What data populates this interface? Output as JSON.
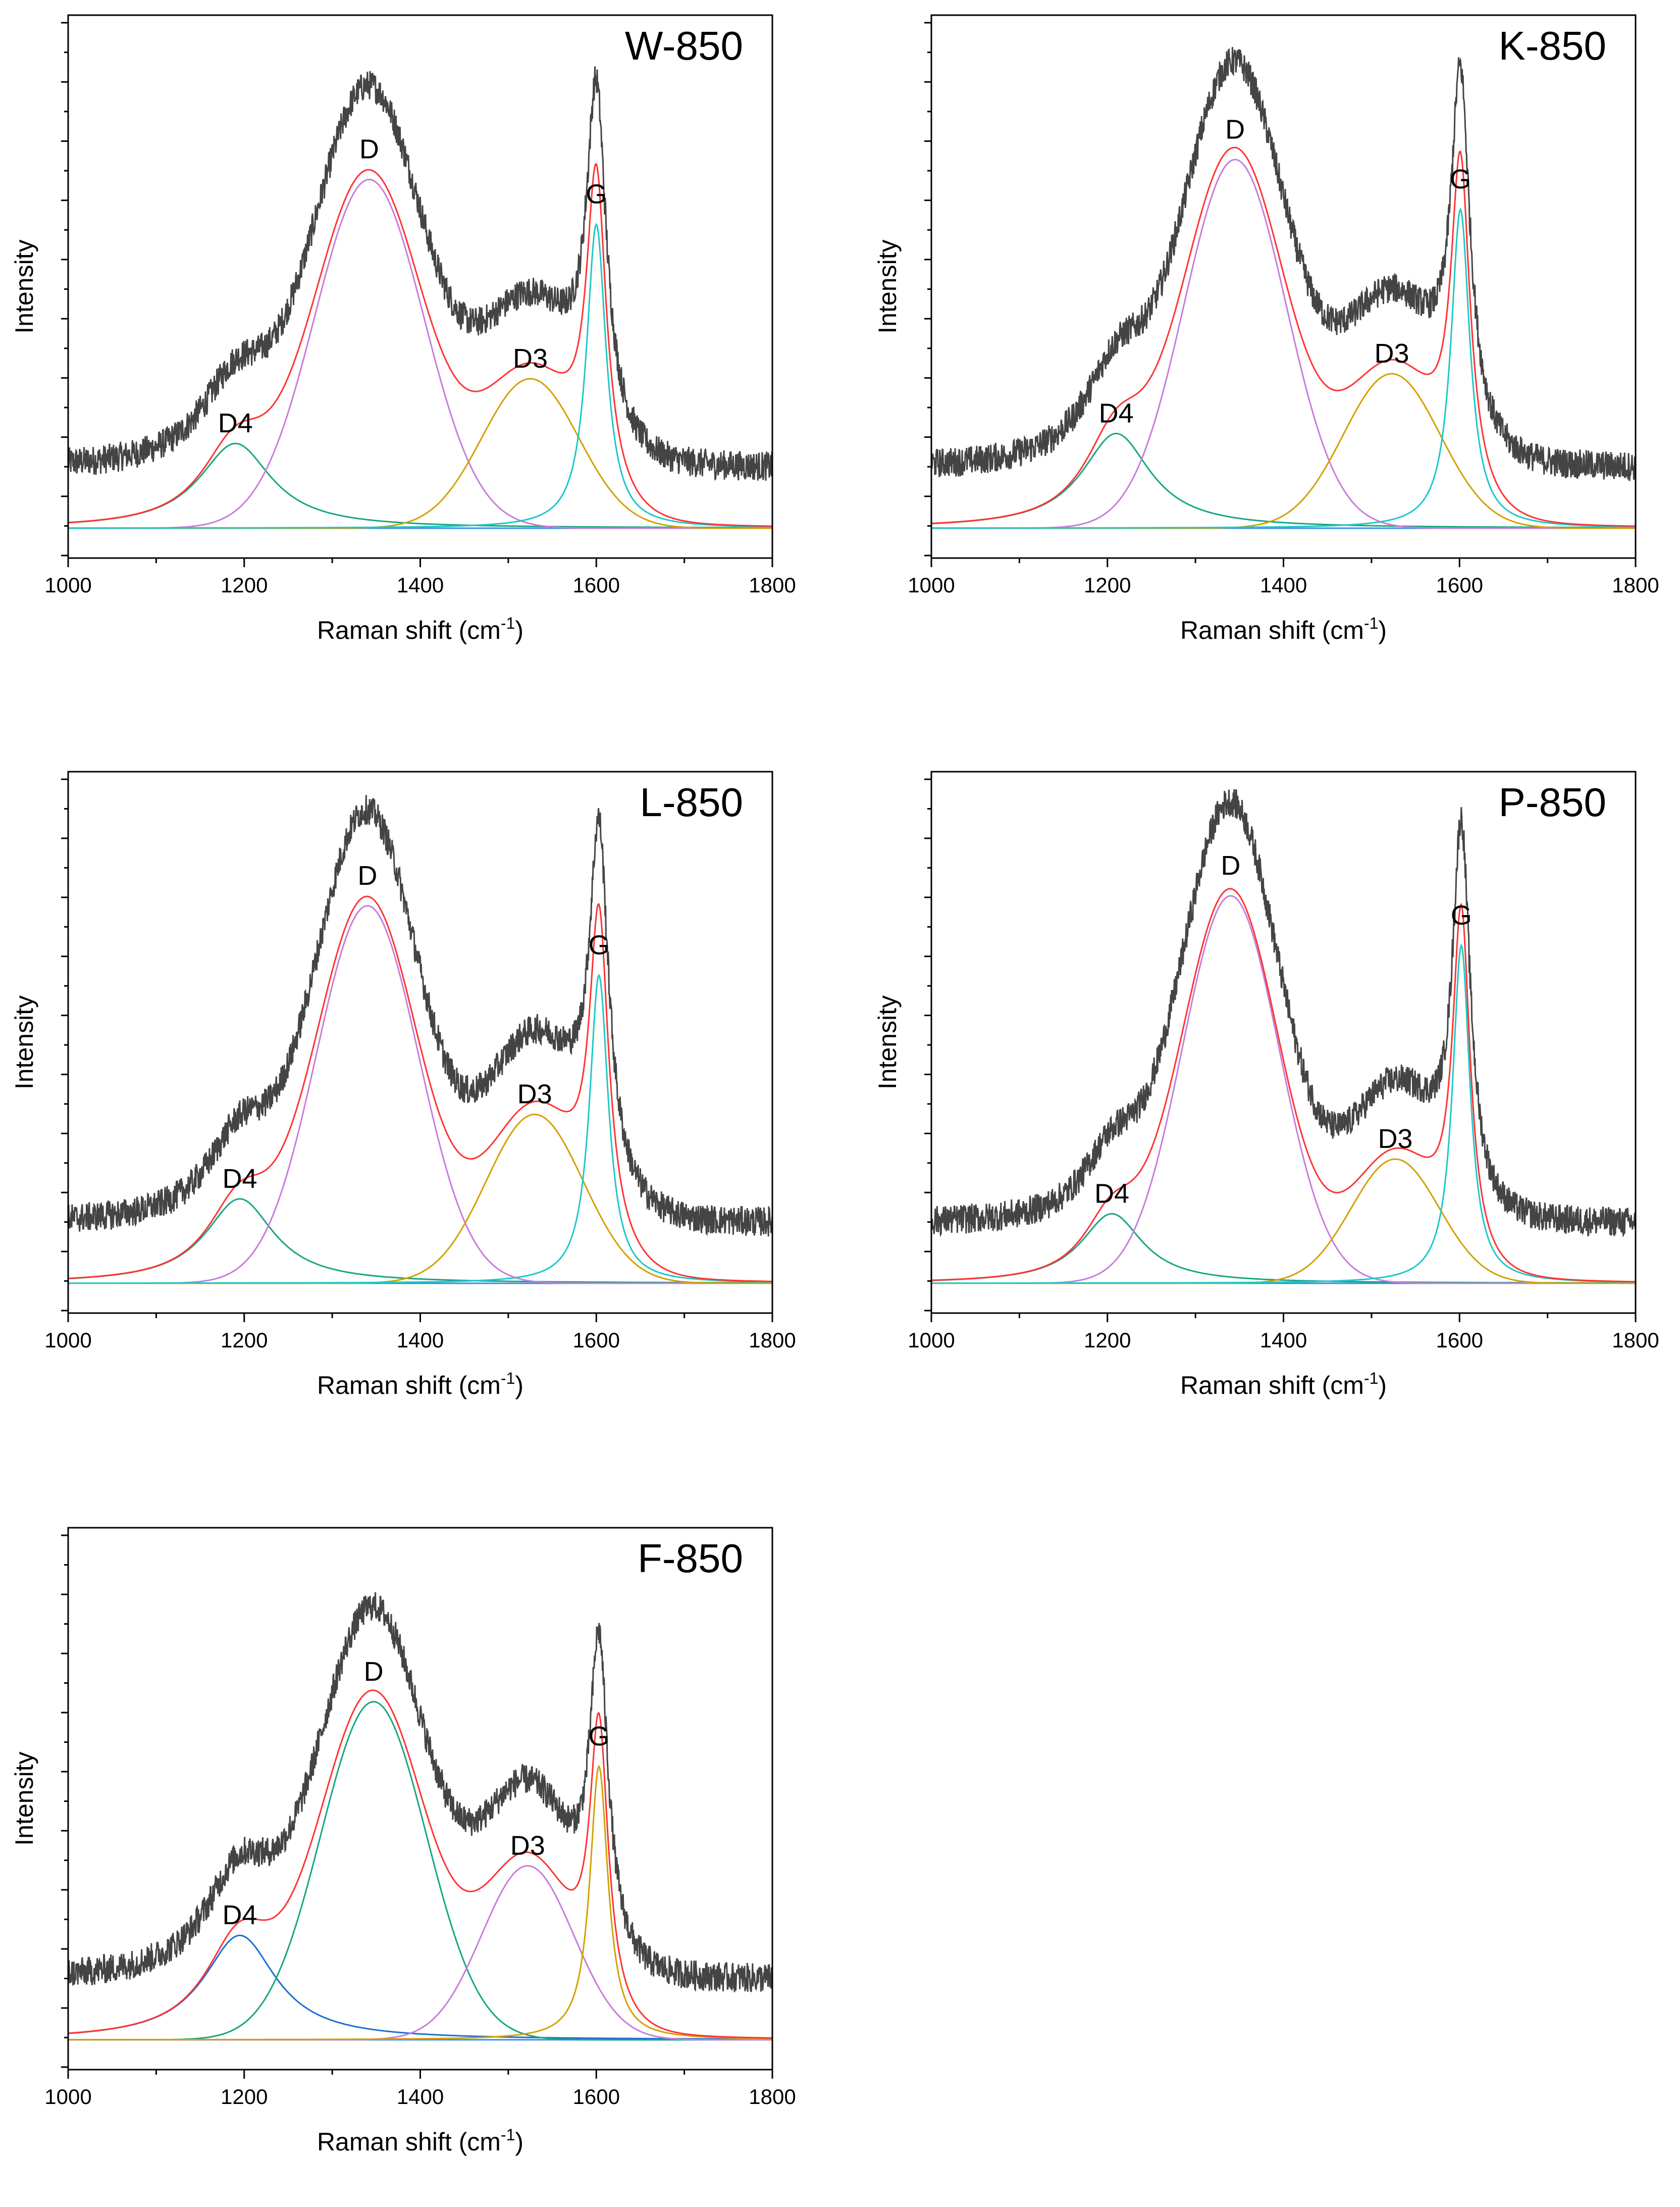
{
  "figure": {
    "ylabel": "Intensity",
    "xlabel_main": "Raman shift (cm",
    "xlabel_sup": "-1",
    "xlabel_end": ")",
    "colors": {
      "raw": "#444444",
      "fit": "#ff3333",
      "purple": "#c77ddb",
      "cyan": "#1ec8c8",
      "green": "#17a683",
      "orange": "#d4a000",
      "blue": "#1a6fd1",
      "baseline": "#3a8ee6"
    }
  },
  "chart_data": [
    {
      "type": "line",
      "title": "W-850",
      "xlabel": "Raman shift (cm-1)",
      "ylabel": "Intensity",
      "xlim": [
        1000,
        1800
      ],
      "ylim": [
        -0.06,
        1.03
      ],
      "xticks": [
        "1000",
        "1200",
        "1400",
        "1600",
        "1800"
      ],
      "raw_offset": 0.12,
      "peaks": [
        {
          "name": "D4",
          "center": 1190,
          "height": 0.17,
          "width": 100,
          "color": "#17a683",
          "shape": "lorentz"
        },
        {
          "name": "D",
          "center": 1342,
          "height": 0.7,
          "width": 62,
          "color": "#c77ddb",
          "shape": "gauss"
        },
        {
          "name": "D3",
          "center": 1525,
          "height": 0.3,
          "width": 55,
          "color": "#d4a000",
          "shape": "gauss"
        },
        {
          "name": "G",
          "center": 1600,
          "height": 0.61,
          "width": 27,
          "color": "#1ec8c8",
          "shape": "lorentz"
        }
      ]
    },
    {
      "type": "line",
      "title": "K-850",
      "xlabel": "Raman shift (cm-1)",
      "ylabel": "Intensity",
      "xlim": [
        1000,
        1800
      ],
      "ylim": [
        -0.06,
        1.03
      ],
      "xticks": [
        "1000",
        "1200",
        "1400",
        "1600",
        "1800"
      ],
      "raw_offset": 0.12,
      "peaks": [
        {
          "name": "D4",
          "center": 1210,
          "height": 0.19,
          "width": 95,
          "color": "#17a683",
          "shape": "lorentz"
        },
        {
          "name": "D",
          "center": 1345,
          "height": 0.74,
          "width": 58,
          "color": "#c77ddb",
          "shape": "gauss"
        },
        {
          "name": "D3",
          "center": 1523,
          "height": 0.31,
          "width": 55,
          "color": "#d4a000",
          "shape": "gauss"
        },
        {
          "name": "G",
          "center": 1601,
          "height": 0.64,
          "width": 26,
          "color": "#1ec8c8",
          "shape": "lorentz"
        }
      ]
    },
    {
      "type": "line",
      "title": "L-850",
      "xlabel": "Raman shift (cm-1)",
      "ylabel": "Intensity",
      "xlim": [
        1000,
        1800
      ],
      "ylim": [
        -0.06,
        1.03
      ],
      "xticks": [
        "1000",
        "1200",
        "1400",
        "1600",
        "1800"
      ],
      "raw_offset": 0.12,
      "peaks": [
        {
          "name": "D4",
          "center": 1195,
          "height": 0.17,
          "width": 95,
          "color": "#17a683",
          "shape": "lorentz"
        },
        {
          "name": "D",
          "center": 1340,
          "height": 0.76,
          "width": 58,
          "color": "#c77ddb",
          "shape": "gauss"
        },
        {
          "name": "D3",
          "center": 1530,
          "height": 0.34,
          "width": 55,
          "color": "#d4a000",
          "shape": "gauss"
        },
        {
          "name": "G",
          "center": 1603,
          "height": 0.62,
          "width": 26,
          "color": "#1ec8c8",
          "shape": "lorentz"
        }
      ]
    },
    {
      "type": "line",
      "title": "P-850",
      "xlabel": "Raman shift (cm-1)",
      "ylabel": "Intensity",
      "xlim": [
        1000,
        1800
      ],
      "ylim": [
        -0.06,
        1.03
      ],
      "xticks": [
        "1000",
        "1200",
        "1400",
        "1600",
        "1800"
      ],
      "raw_offset": 0.12,
      "peaks": [
        {
          "name": "D4",
          "center": 1205,
          "height": 0.14,
          "width": 85,
          "color": "#17a683",
          "shape": "lorentz"
        },
        {
          "name": "D",
          "center": 1340,
          "height": 0.78,
          "width": 55,
          "color": "#c77ddb",
          "shape": "gauss"
        },
        {
          "name": "D3",
          "center": 1527,
          "height": 0.25,
          "width": 50,
          "color": "#d4a000",
          "shape": "gauss"
        },
        {
          "name": "G",
          "center": 1602,
          "height": 0.68,
          "width": 24,
          "color": "#1ec8c8",
          "shape": "lorentz"
        }
      ]
    },
    {
      "type": "line",
      "title": "F-850",
      "xlabel": "Raman shift (cm-1)",
      "ylabel": "Intensity",
      "xlim": [
        1000,
        1800
      ],
      "ylim": [
        -0.06,
        1.03
      ],
      "xticks": [
        "1000",
        "1200",
        "1400",
        "1600",
        "1800"
      ],
      "raw_offset": 0.12,
      "peaks": [
        {
          "name": "D4",
          "center": 1195,
          "height": 0.21,
          "width": 100,
          "color": "#1a6fd1",
          "shape": "lorentz"
        },
        {
          "name": "D",
          "center": 1347,
          "height": 0.68,
          "width": 60,
          "color": "#17a683",
          "shape": "gauss"
        },
        {
          "name": "D3",
          "center": 1522,
          "height": 0.35,
          "width": 52,
          "color": "#c77ddb",
          "shape": "gauss"
        },
        {
          "name": "G",
          "center": 1603,
          "height": 0.55,
          "width": 25,
          "color": "#d4a000",
          "shape": "lorentz"
        }
      ]
    }
  ]
}
